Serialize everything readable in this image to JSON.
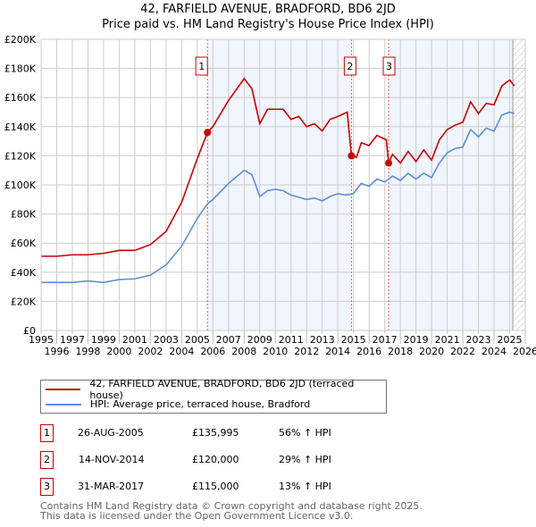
{
  "chart_data": {
    "type": "line",
    "title": "42, FARFIELD AVENUE, BRADFORD, BD6 2JD",
    "subtitle": "Price paid vs. HM Land Registry's House Price Index (HPI)",
    "xlim": [
      1995,
      2026
    ],
    "ylim": [
      0,
      200000
    ],
    "x_ticks": [
      "1995",
      "1996",
      "1997",
      "1998",
      "1999",
      "2000",
      "2001",
      "2002",
      "2003",
      "2004",
      "2005",
      "2006",
      "2007",
      "2008",
      "2009",
      "2010",
      "2011",
      "2012",
      "2013",
      "2014",
      "2015",
      "2016",
      "2017",
      "2018",
      "2019",
      "2020",
      "2021",
      "2022",
      "2023",
      "2024",
      "2025",
      "2026"
    ],
    "y_ticks": [
      {
        "v": 0,
        "label": "£0"
      },
      {
        "v": 20000,
        "label": "£20K"
      },
      {
        "v": 40000,
        "label": "£40K"
      },
      {
        "v": 60000,
        "label": "£60K"
      },
      {
        "v": 80000,
        "label": "£80K"
      },
      {
        "v": 100000,
        "label": "£100K"
      },
      {
        "v": 120000,
        "label": "£120K"
      },
      {
        "v": 140000,
        "label": "£140K"
      },
      {
        "v": 160000,
        "label": "£160K"
      },
      {
        "v": 180000,
        "label": "£180K"
      },
      {
        "v": 200000,
        "label": "£200K"
      }
    ],
    "grid": true,
    "shaded_ranges": [
      [
        2005.65,
        2014.87
      ],
      [
        2017.25,
        2025.2
      ]
    ],
    "hatched_from": 2025.2,
    "series": [
      {
        "name": "42, FARFIELD AVENUE, BRADFORD, BD6 2JD (terraced house)",
        "color": "#cc0000",
        "x": [
          1995,
          1996,
          1997,
          1998,
          1999,
          2000,
          2001,
          2002,
          2003,
          2004,
          2005,
          2005.65,
          2006,
          2007,
          2008,
          2008.5,
          2009,
          2009.5,
          2010,
          2010.5,
          2011,
          2011.5,
          2012,
          2012.5,
          2013,
          2013.5,
          2014,
          2014.6,
          2014.87,
          2015.2,
          2015.5,
          2016,
          2016.5,
          2017.1,
          2017.25,
          2017.5,
          2018,
          2018.5,
          2019,
          2019.5,
          2020,
          2020.5,
          2021,
          2021.5,
          2022,
          2022.5,
          2023,
          2023.5,
          2024,
          2024.5,
          2025,
          2025.3
        ],
        "y": [
          51000,
          51000,
          52000,
          52000,
          53000,
          55000,
          55000,
          59000,
          68000,
          88000,
          118000,
          135995,
          140000,
          158000,
          173000,
          166000,
          142000,
          152000,
          152000,
          152000,
          145000,
          147000,
          140000,
          142000,
          137000,
          145000,
          147000,
          150000,
          120000,
          119000,
          129000,
          127000,
          134000,
          131000,
          115000,
          121000,
          115000,
          123000,
          116000,
          124000,
          117000,
          131000,
          138000,
          141000,
          143000,
          157000,
          149000,
          156000,
          155000,
          168000,
          172000,
          168000
        ]
      },
      {
        "name": "HPI: Average price, terraced house, Bradford",
        "color": "#5b8fd4",
        "x": [
          1995,
          1996,
          1997,
          1998,
          1999,
          2000,
          2001,
          2002,
          2003,
          2004,
          2005,
          2005.65,
          2006,
          2007,
          2008,
          2008.5,
          2009,
          2009.5,
          2010,
          2010.5,
          2011,
          2012,
          2012.5,
          2013,
          2013.5,
          2014,
          2014.5,
          2015,
          2015.5,
          2016,
          2016.5,
          2017,
          2017.5,
          2018,
          2018.5,
          2019,
          2019.5,
          2020,
          2020.5,
          2021,
          2021.5,
          2022,
          2022.5,
          2023,
          2023.5,
          2024,
          2024.5,
          2025,
          2025.3
        ],
        "y": [
          33000,
          33000,
          33000,
          34000,
          33000,
          35000,
          35500,
          38000,
          45000,
          58000,
          77000,
          87000,
          90000,
          101000,
          110000,
          107000,
          92000,
          96000,
          97000,
          96000,
          93000,
          90000,
          91000,
          89000,
          92000,
          94000,
          93000,
          94000,
          101000,
          99000,
          104000,
          102000,
          106000,
          103000,
          108000,
          104000,
          108000,
          105000,
          115000,
          122000,
          125000,
          126000,
          138000,
          133000,
          139000,
          137000,
          148000,
          150000,
          149000
        ]
      }
    ],
    "sales": [
      {
        "n": "1",
        "x": 2005.65,
        "y": 135995
      },
      {
        "n": "2",
        "x": 2014.87,
        "y": 120000
      },
      {
        "n": "3",
        "x": 2017.25,
        "y": 115000
      }
    ]
  },
  "legend": {
    "red": "42, FARFIELD AVENUE, BRADFORD, BD6 2JD (terraced house)",
    "blue": "HPI: Average price, terraced house, Bradford"
  },
  "transactions": [
    {
      "n": "1",
      "date": "26-AUG-2005",
      "price": "£135,995",
      "hpi": "56% ↑ HPI"
    },
    {
      "n": "2",
      "date": "14-NOV-2014",
      "price": "£120,000",
      "hpi": "29% ↑ HPI"
    },
    {
      "n": "3",
      "date": "31-MAR-2017",
      "price": "£115,000",
      "hpi": "13% ↑ HPI"
    }
  ],
  "footer": {
    "line1": "Contains HM Land Registry data © Crown copyright and database right 2025.",
    "line2": "This data is licensed under the Open Government Licence v3.0."
  }
}
